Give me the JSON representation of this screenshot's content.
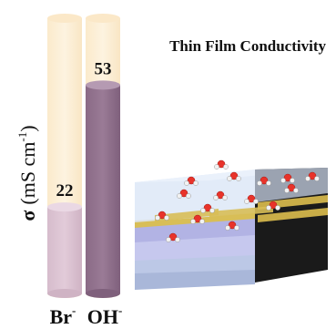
{
  "chart_data": {
    "type": "bar",
    "title": "Thin Film Conductivity",
    "ylabel_symbol": "σ",
    "ylabel_units": "(mS cm",
    "ylabel_exp": "-1",
    "ylabel_close": ")",
    "ylim": [
      0,
      70
    ],
    "categories": [
      {
        "base": "Br",
        "sup": "-"
      },
      {
        "base": "OH",
        "sup": "-"
      }
    ],
    "values": [
      22,
      53
    ],
    "value_labels": [
      "22",
      "53"
    ],
    "colors": {
      "track": "#fdf0d8",
      "track_top": "#fbe8c8",
      "br_fill": "#dcc2d2",
      "br_top": "#ead8e4",
      "oh_fill": "#957691",
      "oh_top": "#b59ab2"
    }
  },
  "illustration": {
    "description_icon": "thin-film-slab-icon",
    "colors": {
      "top_layer": "#dfe9f7",
      "gold": "#d8be57",
      "mid_layer": "#b7b8e8",
      "base_layer": "#c9c9ef",
      "dark": "#111111",
      "oxygen": "#e8332a",
      "hydrogen": "#f2f2f2"
    }
  }
}
